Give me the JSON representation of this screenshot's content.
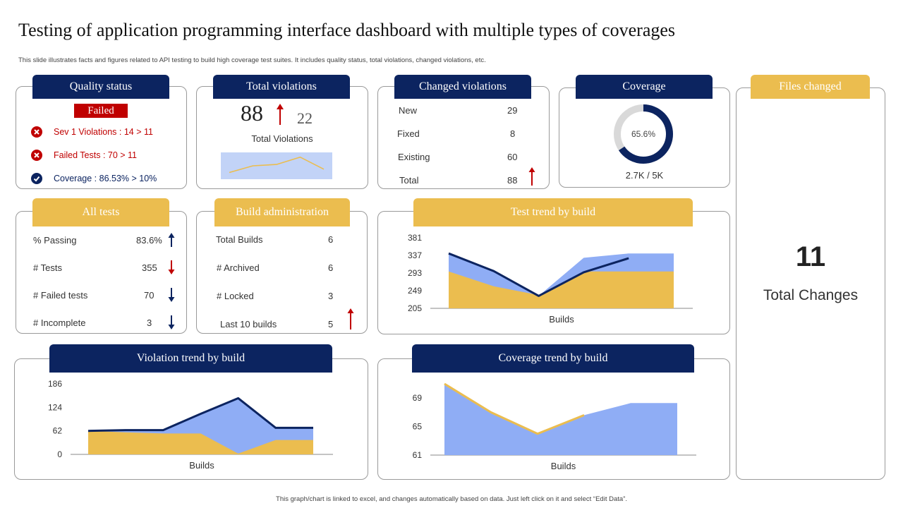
{
  "header": {
    "title": "Testing of application programming interface dashboard with multiple types of coverages",
    "subtitle": "This slide illustrates facts and figures related to API testing to build high coverage test suites. It includes quality status, total violations, changed violations, etc."
  },
  "footer": "This graph/chart is linked to excel, and changes automatically based on data. Just left click on it and select “Edit Data”.",
  "quality_status": {
    "title": "Quality status",
    "badge": "Failed",
    "items": [
      {
        "icon": "x-circle-icon",
        "text": "Sev 1 Violations  : 14 > 11"
      },
      {
        "icon": "x-circle-icon",
        "text": "Failed Tests  : 70 > 11"
      },
      {
        "icon": "check-circle-icon",
        "text": "Coverage   : 86.53% > 10%"
      }
    ]
  },
  "total_violations": {
    "title": "Total violations",
    "value": "88",
    "delta": "22",
    "label": "Total Violations",
    "sparkline": [
      40,
      50,
      52,
      63,
      45
    ]
  },
  "changed_violations": {
    "title": "Changed violations",
    "rows": [
      {
        "label": "New",
        "value": "29"
      },
      {
        "label": "Fixed",
        "value": "8"
      },
      {
        "label": "Existing",
        "value": "60"
      },
      {
        "label": "Total",
        "value": "88"
      }
    ]
  },
  "coverage": {
    "title": "Coverage",
    "percent": 65.6,
    "percent_label": "65.6%",
    "sub": "2.7K / 5K"
  },
  "files_changed": {
    "title": "Files changed",
    "value": "11",
    "label": "Total Changes"
  },
  "all_tests": {
    "title": "All tests",
    "rows": [
      {
        "label": "% Passing",
        "value": "83.6%",
        "arrow": "up"
      },
      {
        "label": "# Tests",
        "value": "355",
        "arrow": "down-red"
      },
      {
        "label": "# Failed tests",
        "value": "70",
        "arrow": "down"
      },
      {
        "label": "# Incomplete",
        "value": "3",
        "arrow": "down"
      }
    ]
  },
  "build_admin": {
    "title": "Build administration",
    "rows": [
      {
        "label": "Total Builds",
        "value": "6"
      },
      {
        "label": "# Archived",
        "value": "6"
      },
      {
        "label": "# Locked",
        "value": "3"
      },
      {
        "label": "Last 10 builds",
        "value": "5"
      }
    ]
  },
  "colors": {
    "navy": "#0c2460",
    "gold": "#ebbd4f",
    "blue": "#8fadf5",
    "red": "#c00000"
  },
  "chart_data": [
    {
      "id": "test_trend",
      "title": "Test trend by build",
      "type": "area",
      "xlabel": "Builds",
      "yticks": [
        "205",
        "249",
        "293",
        "337",
        "381"
      ],
      "ylim": [
        205,
        381
      ],
      "x": [
        1,
        2,
        3,
        4,
        5,
        6
      ],
      "series": [
        {
          "name": "Upper area",
          "kind": "area",
          "color": "#8fadf5",
          "values": [
            342,
            298,
            236,
            331,
            342,
            342
          ]
        },
        {
          "name": "Lower area",
          "kind": "area",
          "color": "#ebbd4f",
          "values": [
            297,
            260,
            238,
            297,
            297,
            297
          ]
        },
        {
          "name": "Line",
          "kind": "line",
          "color": "#0c2460",
          "values": [
            342,
            298,
            236,
            295,
            330,
            null
          ]
        }
      ]
    },
    {
      "id": "violation_trend",
      "title": "Violation trend by build",
      "type": "area",
      "xlabel": "Builds",
      "yticks": [
        "0",
        "62",
        "124",
        "186"
      ],
      "ylim": [
        0,
        186
      ],
      "x": [
        1,
        2,
        3,
        4,
        5,
        6,
        7
      ],
      "series": [
        {
          "name": "Upper area",
          "kind": "area",
          "color": "#8fadf5",
          "values": [
            62,
            62,
            62,
            105,
            150,
            70,
            70
          ]
        },
        {
          "name": "Lower area",
          "kind": "area",
          "color": "#ebbd4f",
          "values": [
            62,
            58,
            55,
            55,
            2,
            38,
            38
          ]
        },
        {
          "name": "Line",
          "kind": "line",
          "color": "#0c2460",
          "values": [
            62,
            64,
            64,
            107,
            148,
            70,
            70
          ]
        }
      ]
    },
    {
      "id": "coverage_trend",
      "title": "Coverage trend by build",
      "type": "area",
      "xlabel": "Builds",
      "yticks": [
        "61",
        "65",
        "69"
      ],
      "ylim": [
        61,
        71
      ],
      "x": [
        1,
        2,
        3,
        4,
        5,
        6
      ],
      "series": [
        {
          "name": "Area",
          "kind": "area",
          "color": "#8fadf5",
          "values": [
            71,
            67,
            64,
            66.6,
            68.3,
            68.3
          ]
        },
        {
          "name": "Line",
          "kind": "line",
          "color": "#ebbd4f",
          "values": [
            71,
            67,
            64,
            66.6,
            null,
            null
          ]
        }
      ]
    }
  ]
}
